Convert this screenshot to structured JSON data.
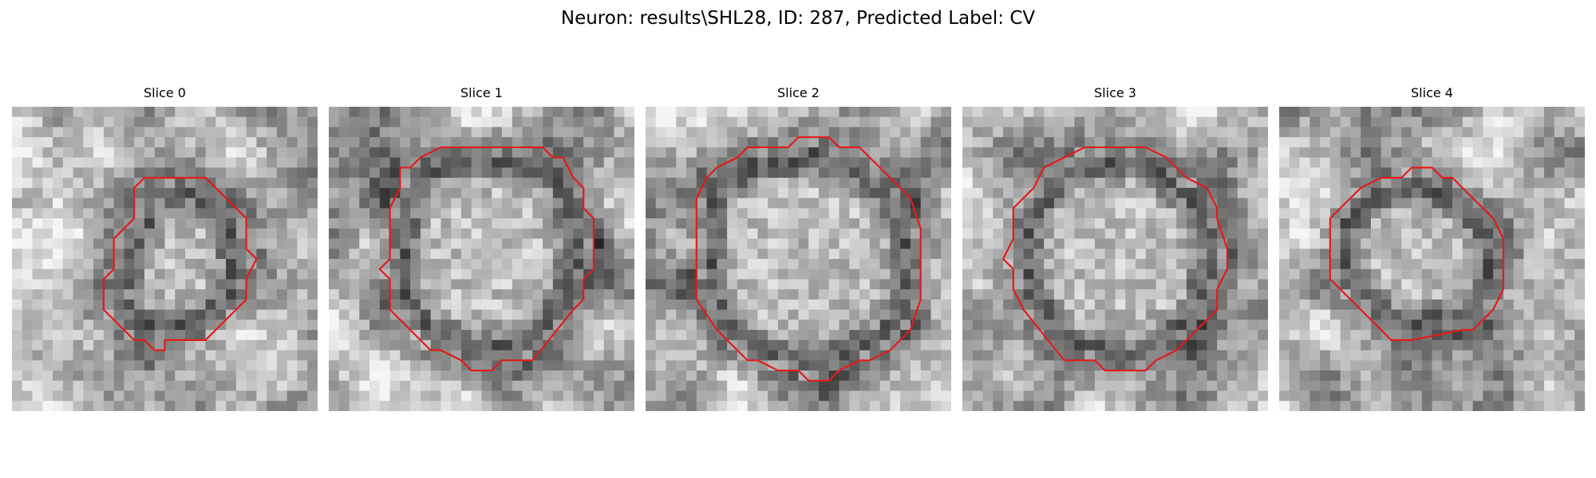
{
  "figure": {
    "title": "Neuron: results\\SHL28, ID: 287, Predicted Label: CV",
    "contour_color": "#e41a1c",
    "colormap": "gray",
    "slices": [
      {
        "label": "Slice 0"
      },
      {
        "label": "Slice 1"
      },
      {
        "label": "Slice 2"
      },
      {
        "label": "Slice 3"
      },
      {
        "label": "Slice 4"
      }
    ]
  }
}
